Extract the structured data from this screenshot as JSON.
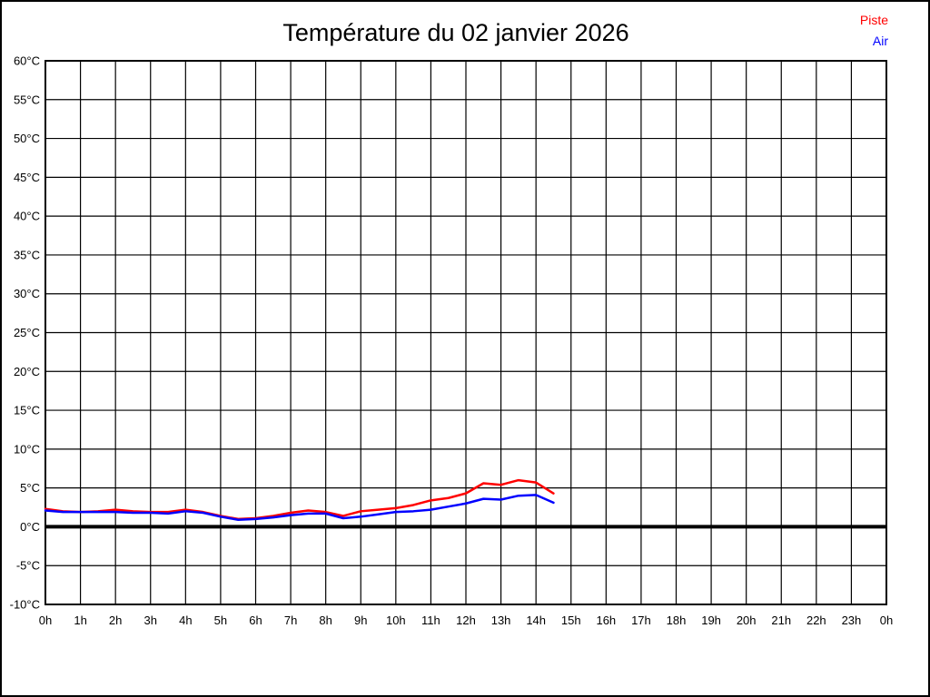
{
  "frame": {
    "background": "#ffffff",
    "border_color": "#000000"
  },
  "legend": {
    "items": [
      {
        "label": "Piste",
        "color": "#ff0000"
      },
      {
        "label": "Air",
        "color": "#0000ff"
      }
    ]
  },
  "chart_data": {
    "type": "line",
    "title": "Température du 02 janvier 2026",
    "xlabel": "",
    "ylabel": "",
    "xlim": [
      0,
      24
    ],
    "ylim": [
      -10,
      60
    ],
    "y_tick_step": 5,
    "grid": true,
    "legend_position": "top-right",
    "x_tick_labels": [
      "0h",
      "1h",
      "2h",
      "3h",
      "4h",
      "5h",
      "6h",
      "7h",
      "8h",
      "9h",
      "10h",
      "11h",
      "12h",
      "13h",
      "14h",
      "15h",
      "16h",
      "17h",
      "18h",
      "19h",
      "20h",
      "21h",
      "22h",
      "23h",
      "0h"
    ],
    "y_tick_labels": [
      "60°C",
      "55°C",
      "50°C",
      "45°C",
      "40°C",
      "35°C",
      "30°C",
      "25°C",
      "20°C",
      "15°C",
      "10°C",
      "5°C",
      "0°C",
      "-5°C",
      "-10°C"
    ],
    "zero_line": {
      "value": 0,
      "color": "#000000",
      "width": 4
    },
    "x": [
      0,
      0.5,
      1,
      1.5,
      2,
      2.5,
      3,
      3.5,
      4,
      4.5,
      5,
      5.5,
      6,
      6.5,
      7,
      7.5,
      8,
      8.5,
      9,
      9.5,
      10,
      10.5,
      11,
      11.5,
      12,
      12.5,
      13,
      13.5,
      14,
      14.5
    ],
    "series": [
      {
        "name": "Piste",
        "color": "#ff0000",
        "values": [
          2.3,
          2.0,
          1.9,
          2.0,
          2.2,
          2.0,
          1.9,
          1.9,
          2.2,
          1.9,
          1.4,
          1.0,
          1.1,
          1.4,
          1.8,
          2.1,
          1.9,
          1.4,
          2.0,
          2.2,
          2.4,
          2.8,
          3.4,
          3.7,
          4.3,
          5.6,
          5.4,
          6.0,
          5.7,
          4.3
        ]
      },
      {
        "name": "Air",
        "color": "#0000ff",
        "values": [
          2.1,
          1.9,
          1.9,
          1.9,
          1.9,
          1.8,
          1.8,
          1.7,
          2.0,
          1.8,
          1.3,
          0.9,
          1.0,
          1.2,
          1.5,
          1.7,
          1.7,
          1.1,
          1.3,
          1.6,
          1.9,
          2.0,
          2.2,
          2.6,
          3.0,
          3.6,
          3.5,
          4.0,
          4.1,
          3.1
        ]
      }
    ]
  }
}
